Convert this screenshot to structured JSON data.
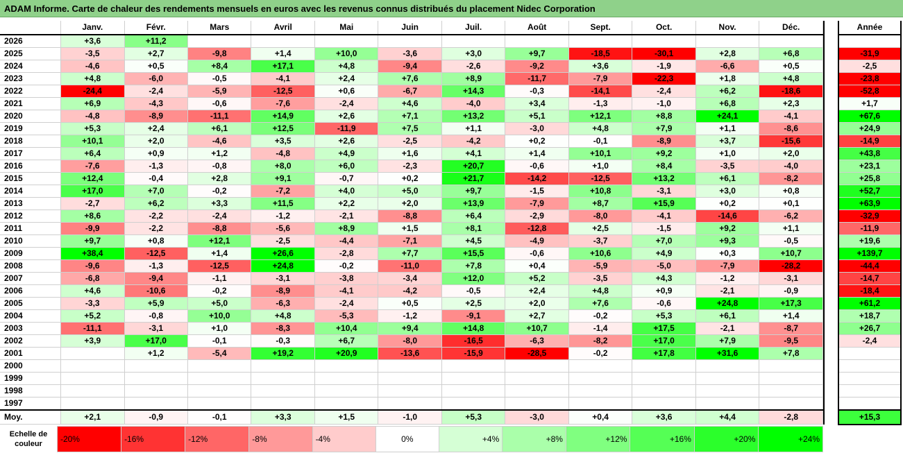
{
  "title": "ADAM Informe. Carte de chaleur des rendements mensuels en euros avec les revenus connus distribués du placement Nidec Corporation",
  "months": [
    "Janv.",
    "Févr.",
    "Mars",
    "Avril",
    "Mai",
    "Juin",
    "Juil.",
    "Août",
    "Sept.",
    "Oct.",
    "Nov.",
    "Déc."
  ],
  "annual_header": "Année",
  "rows": [
    {
      "year": "2026",
      "values": [
        3.6,
        11.2,
        null,
        null,
        null,
        null,
        null,
        null,
        null,
        null,
        null,
        null
      ],
      "annual": null
    },
    {
      "year": "2025",
      "values": [
        -3.5,
        2.7,
        -9.8,
        1.4,
        10.0,
        -3.6,
        3.0,
        9.7,
        -18.5,
        -30.1,
        2.8,
        6.8
      ],
      "annual": -31.9
    },
    {
      "year": "2024",
      "values": [
        -4.6,
        0.5,
        8.4,
        17.1,
        4.8,
        -9.4,
        -2.6,
        -9.2,
        3.6,
        -1.9,
        -6.6,
        0.5
      ],
      "annual": -2.5
    },
    {
      "year": "2023",
      "values": [
        4.8,
        -6.0,
        -0.5,
        -4.1,
        2.4,
        7.6,
        8.9,
        -11.7,
        -7.9,
        -22.3,
        1.8,
        4.8
      ],
      "annual": -23.8
    },
    {
      "year": "2022",
      "values": [
        -24.4,
        -2.4,
        -5.9,
        -12.5,
        0.6,
        -6.7,
        14.3,
        -0.3,
        -14.1,
        -2.4,
        6.2,
        -18.6
      ],
      "annual": -52.8
    },
    {
      "year": "2021",
      "values": [
        6.9,
        -4.3,
        -0.6,
        -7.6,
        -2.4,
        4.6,
        -4.0,
        3.4,
        -1.3,
        -1.0,
        6.8,
        2.3
      ],
      "annual": 1.7
    },
    {
      "year": "2020",
      "values": [
        -4.8,
        -8.9,
        -11.1,
        14.9,
        2.6,
        7.1,
        13.2,
        5.1,
        12.1,
        8.8,
        24.1,
        -4.1
      ],
      "annual": 67.6
    },
    {
      "year": "2019",
      "values": [
        5.3,
        2.4,
        6.1,
        12.5,
        -11.9,
        7.5,
        1.1,
        -3.0,
        4.8,
        7.9,
        1.1,
        -8.6
      ],
      "annual": 24.9
    },
    {
      "year": "2018",
      "values": [
        10.1,
        2.0,
        -4.6,
        3.5,
        2.6,
        -2.5,
        -4.2,
        0.2,
        -0.1,
        -8.9,
        3.7,
        -15.6
      ],
      "annual": -14.9
    },
    {
      "year": "2017",
      "values": [
        6.4,
        0.9,
        1.2,
        -4.8,
        4.9,
        1.6,
        4.1,
        1.4,
        10.1,
        9.2,
        1.0,
        2.0
      ],
      "annual": 43.8
    },
    {
      "year": "2016",
      "values": [
        -7.6,
        -1.3,
        -0.8,
        8.0,
        6.0,
        -2.3,
        20.7,
        -0.6,
        1.0,
        8.4,
        -3.5,
        -4.0
      ],
      "annual": 23.1
    },
    {
      "year": "2015",
      "values": [
        12.4,
        -0.4,
        2.8,
        9.1,
        -0.7,
        0.2,
        21.7,
        -14.2,
        -12.5,
        13.2,
        6.1,
        -8.2
      ],
      "annual": 25.8
    },
    {
      "year": "2014",
      "values": [
        17.0,
        7.0,
        -0.2,
        -7.2,
        4.0,
        5.0,
        9.7,
        -1.5,
        10.8,
        -3.1,
        3.0,
        0.8
      ],
      "annual": 52.7
    },
    {
      "year": "2013",
      "values": [
        -2.7,
        6.2,
        3.3,
        11.5,
        2.2,
        2.0,
        13.9,
        -7.9,
        8.7,
        15.9,
        0.2,
        0.1
      ],
      "annual": 63.9
    },
    {
      "year": "2012",
      "values": [
        8.6,
        -2.2,
        -2.4,
        -1.2,
        -2.1,
        -8.8,
        6.4,
        -2.9,
        -8.0,
        -4.1,
        -14.6,
        -6.2
      ],
      "annual": -32.9
    },
    {
      "year": "2011",
      "values": [
        -9.9,
        -2.2,
        -8.8,
        -5.6,
        8.9,
        1.5,
        8.1,
        -12.8,
        2.5,
        -1.5,
        9.2,
        1.1
      ],
      "annual": -11.9
    },
    {
      "year": "2010",
      "values": [
        9.7,
        0.8,
        12.1,
        -2.5,
        -4.4,
        -7.1,
        4.5,
        -4.9,
        -3.7,
        7.0,
        9.3,
        -0.5
      ],
      "annual": 19.6
    },
    {
      "year": "2009",
      "values": [
        38.4,
        -12.5,
        1.4,
        26.6,
        -2.8,
        7.7,
        15.5,
        -0.6,
        10.6,
        4.9,
        0.3,
        10.7
      ],
      "annual": 139.7
    },
    {
      "year": "2008",
      "values": [
        -9.6,
        -1.3,
        -12.5,
        24.8,
        -0.2,
        -11.0,
        7.8,
        0.4,
        -5.9,
        -5.0,
        -7.9,
        -28.2
      ],
      "annual": -44.4
    },
    {
      "year": "2007",
      "values": [
        -6.8,
        -9.4,
        -1.1,
        -3.1,
        -3.8,
        -3.4,
        12.0,
        5.2,
        -3.5,
        4.3,
        -1.2,
        -3.1
      ],
      "annual": -14.7
    },
    {
      "year": "2006",
      "values": [
        4.6,
        -10.6,
        -0.2,
        -8.9,
        -4.1,
        -4.2,
        -0.5,
        2.4,
        4.8,
        0.9,
        -2.1,
        -0.9
      ],
      "annual": -18.4
    },
    {
      "year": "2005",
      "values": [
        -3.3,
        5.9,
        5.0,
        -6.3,
        -2.4,
        0.5,
        2.5,
        2.0,
        7.6,
        -0.6,
        24.8,
        17.3
      ],
      "annual": 61.2
    },
    {
      "year": "2004",
      "values": [
        5.2,
        -0.8,
        10.0,
        4.8,
        -5.3,
        -1.2,
        -9.1,
        2.7,
        -0.2,
        5.3,
        6.1,
        1.4
      ],
      "annual": 18.7
    },
    {
      "year": "2003",
      "values": [
        -11.1,
        -3.1,
        1.0,
        -8.3,
        10.4,
        9.4,
        14.8,
        10.7,
        -1.4,
        17.5,
        -2.1,
        -8.7
      ],
      "annual": 26.7
    },
    {
      "year": "2002",
      "values": [
        3.9,
        17.0,
        -0.1,
        -0.3,
        6.7,
        -8.0,
        -16.5,
        -6.3,
        -8.2,
        17.0,
        7.9,
        -9.5
      ],
      "annual": -2.4
    },
    {
      "year": "2001",
      "values": [
        null,
        1.2,
        -5.4,
        19.2,
        20.9,
        -13.6,
        -15.9,
        -28.5,
        -0.2,
        17.8,
        31.6,
        7.8
      ],
      "annual": null
    },
    {
      "year": "2000",
      "values": [
        null,
        null,
        null,
        null,
        null,
        null,
        null,
        null,
        null,
        null,
        null,
        null
      ],
      "annual": null
    },
    {
      "year": "1999",
      "values": [
        null,
        null,
        null,
        null,
        null,
        null,
        null,
        null,
        null,
        null,
        null,
        null
      ],
      "annual": null
    },
    {
      "year": "1998",
      "values": [
        null,
        null,
        null,
        null,
        null,
        null,
        null,
        null,
        null,
        null,
        null,
        null
      ],
      "annual": null
    },
    {
      "year": "1997",
      "values": [
        null,
        null,
        null,
        null,
        null,
        null,
        null,
        null,
        null,
        null,
        null,
        null
      ],
      "annual": null
    }
  ],
  "average": {
    "label": "Moy.",
    "values": [
      2.1,
      -0.9,
      -0.1,
      3.3,
      1.5,
      -1.0,
      5.3,
      -3.0,
      0.4,
      3.6,
      4.4,
      -2.8
    ],
    "annual": 15.3
  },
  "scale": {
    "label": "Echelle de couleur",
    "steps": [
      {
        "text": "-20%",
        "value": -20
      },
      {
        "text": "-16%",
        "value": -16
      },
      {
        "text": "-12%",
        "value": -12
      },
      {
        "text": "-8%",
        "value": -8
      },
      {
        "text": "-4%",
        "value": -4
      },
      {
        "text": "0%",
        "value": 0
      },
      {
        "text": "+4%",
        "value": 4
      },
      {
        "text": "+8%",
        "value": 8
      },
      {
        "text": "+12%",
        "value": 12
      },
      {
        "text": "+16%",
        "value": 16
      },
      {
        "text": "+20%",
        "value": 20
      },
      {
        "text": "+24%",
        "value": 24
      }
    ]
  },
  "colors": {
    "negative": "#ff0000",
    "neutral": "#ffffff",
    "positive": "#00ff00"
  }
}
